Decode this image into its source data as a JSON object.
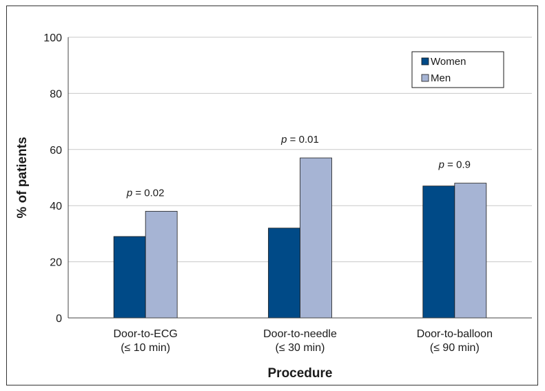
{
  "chart_data": {
    "type": "bar",
    "categories": [
      [
        "Door-to-ECG",
        "(≤ 10 min)"
      ],
      [
        "Door-to-needle",
        "(≤ 30 min)"
      ],
      [
        "Door-to-balloon",
        "(≤ 90 min)"
      ]
    ],
    "series": [
      {
        "name": "Women",
        "values": [
          29,
          32,
          47
        ],
        "color": "#004A87"
      },
      {
        "name": "Men",
        "values": [
          38,
          57,
          48
        ],
        "color": "#A6B4D4"
      }
    ],
    "xlabel": "Procedure",
    "ylabel": "% of patients",
    "ylim": [
      0,
      100
    ],
    "yticks": [
      0,
      20,
      40,
      60,
      80,
      100
    ],
    "grid": true,
    "legend": "top-right",
    "annotations": [
      {
        "category": 0,
        "p_label": "p",
        "text": " = 0.02"
      },
      {
        "category": 1,
        "p_label": "p",
        "text": " = 0.01"
      },
      {
        "category": 2,
        "p_label": "p",
        "text": " = 0.9"
      }
    ],
    "colors": {
      "grid": "#c8c8c8",
      "axis": "#444444",
      "bar_stroke": "#1a1a1a"
    }
  }
}
